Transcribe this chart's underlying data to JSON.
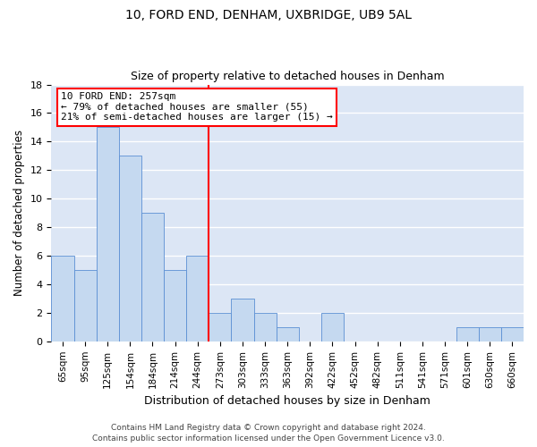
{
  "title1": "10, FORD END, DENHAM, UXBRIDGE, UB9 5AL",
  "title2": "Size of property relative to detached houses in Denham",
  "xlabel": "Distribution of detached houses by size in Denham",
  "ylabel": "Number of detached properties",
  "categories": [
    "65sqm",
    "95sqm",
    "125sqm",
    "154sqm",
    "184sqm",
    "214sqm",
    "244sqm",
    "273sqm",
    "303sqm",
    "333sqm",
    "363sqm",
    "392sqm",
    "422sqm",
    "452sqm",
    "482sqm",
    "511sqm",
    "541sqm",
    "571sqm",
    "601sqm",
    "630sqm",
    "660sqm"
  ],
  "values": [
    6,
    5,
    15,
    13,
    9,
    5,
    6,
    2,
    3,
    2,
    1,
    0,
    2,
    0,
    0,
    0,
    0,
    0,
    1,
    1,
    1
  ],
  "bar_color": "#c5d9f0",
  "bar_edge_color": "#5b8fd4",
  "vline_color": "red",
  "annotation_line1": "10 FORD END: 257sqm",
  "annotation_line2": "← 79% of detached houses are smaller (55)",
  "annotation_line3": "21% of semi-detached houses are larger (15) →",
  "annotation_box_color": "white",
  "annotation_box_edge": "red",
  "ylim": [
    0,
    18
  ],
  "yticks": [
    0,
    2,
    4,
    6,
    8,
    10,
    12,
    14,
    16,
    18
  ],
  "background_color": "#dce6f5",
  "grid_color": "white",
  "footer1": "Contains HM Land Registry data © Crown copyright and database right 2024.",
  "footer2": "Contains public sector information licensed under the Open Government Licence v3.0."
}
